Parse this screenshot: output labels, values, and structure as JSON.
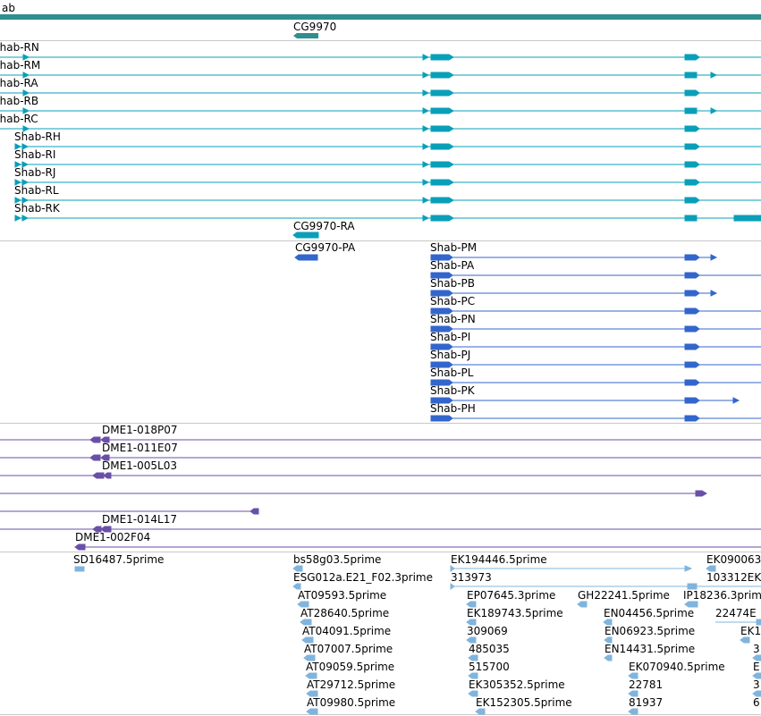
{
  "colors": {
    "gene": "#2f8f8f",
    "transcript": "#0a9fb8",
    "protein": "#3366cc",
    "cdna": "#6a4fa8",
    "est": "#80b4dc",
    "separator": "#c8c8c8"
  },
  "gene_track": {
    "genes": [
      {
        "label": "ab",
        "arrow": "right"
      },
      {
        "label": "CG9970",
        "arrow": "left"
      }
    ]
  },
  "transcript_track": {
    "transcripts": [
      {
        "label": "Shab-RN",
        "three_prime_arrow": false
      },
      {
        "label": "Shab-RM",
        "three_prime_arrow": true
      },
      {
        "label": "Shab-RA",
        "three_prime_arrow": false
      },
      {
        "label": "Shab-RB",
        "three_prime_arrow": true
      },
      {
        "label": "Shab-RC",
        "three_prime_arrow": false
      },
      {
        "label": "Shab-RH",
        "three_prime_arrow": false
      },
      {
        "label": "Shab-RI",
        "three_prime_arrow": false
      },
      {
        "label": "Shab-RJ",
        "three_prime_arrow": false
      },
      {
        "label": "Shab-RL",
        "three_prime_arrow": false
      },
      {
        "label": "Shab-RK",
        "three_prime_arrow": false
      }
    ],
    "cg_transcript": "CG9970-RA"
  },
  "protein_track": {
    "cg_protein": "CG9970-PA",
    "proteins": [
      {
        "label": "Shab-PM"
      },
      {
        "label": "Shab-PA"
      },
      {
        "label": "Shab-PB"
      },
      {
        "label": "Shab-PC"
      },
      {
        "label": "Shab-PN"
      },
      {
        "label": "Shab-PI"
      },
      {
        "label": "Shab-PJ"
      },
      {
        "label": "Shab-PL"
      },
      {
        "label": "Shab-PK"
      },
      {
        "label": "Shab-PH"
      }
    ]
  },
  "cdna_track": {
    "clones": [
      {
        "label": "DME1-018P07"
      },
      {
        "label": "DME1-011E07"
      },
      {
        "label": "DME1-005L03"
      },
      {
        "label": ""
      },
      {
        "label": ""
      },
      {
        "label": "DME1-014L17"
      },
      {
        "label": "DME1-002F04"
      }
    ]
  },
  "est_track": {
    "labels": [
      "SD16487.5prime",
      "bs58g03.5prime",
      "ESG012a.E21_F02.3prime",
      "AT09593.5prime",
      "AT28640.5prime",
      "AT04091.5prime",
      "AT07007.5prime",
      "AT09059.5prime",
      "AT29712.5prime",
      "AT09980.5prime",
      "EK194446.5prime",
      "313973",
      "EP07645.3prime",
      "EK189743.5prime",
      "309069",
      "485035",
      "515700",
      "EK305352.5prime",
      "EK152305.5prime",
      "GH22241.5prime",
      "EN04456.5prime",
      "EN06923.5prime",
      "EN14431.5prime",
      "EK070940.5prime",
      "22781",
      "81937",
      "EK090063",
      "103312EK",
      "IP18236.3prime",
      "22474E",
      "EK1",
      "3",
      "E",
      "3",
      "6"
    ]
  }
}
